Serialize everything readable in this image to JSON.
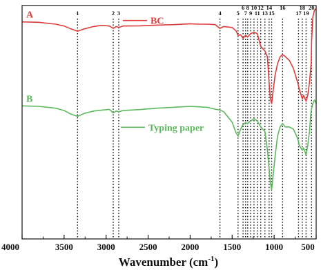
{
  "chart_data": {
    "type": "line",
    "xlabel": "Wavenumber (cm-1)",
    "xlabel_base": "Wavenumber (cm",
    "xlabel_exp": "-1",
    "xlabel_close": ")",
    "xlim": [
      4000,
      500
    ],
    "x_ticks": [
      4000,
      3500,
      3000,
      2500,
      2000,
      1500,
      1000,
      500
    ],
    "x_tick_labels": [
      "4000",
      "3500",
      "3000",
      "2500",
      "2000",
      "1500",
      "1000",
      "500"
    ],
    "grid": false,
    "peak_labels": [
      {
        "label": "1",
        "x": 3340
      },
      {
        "label": "2",
        "x": 2915
      },
      {
        "label": "3",
        "x": 2850
      },
      {
        "label": "4",
        "x": 1645
      },
      {
        "label": "5",
        "x": 1430
      },
      {
        "label": "6",
        "x": 1370
      },
      {
        "label": "7",
        "x": 1340
      },
      {
        "label": "8",
        "x": 1315
      },
      {
        "label": "9",
        "x": 1280
      },
      {
        "label": "10",
        "x": 1240
      },
      {
        "label": "11",
        "x": 1200
      },
      {
        "label": "12",
        "x": 1160
      },
      {
        "label": "13",
        "x": 1110
      },
      {
        "label": "14",
        "x": 1060
      },
      {
        "label": "15",
        "x": 1030
      },
      {
        "label": "16",
        "x": 900
      },
      {
        "label": "17",
        "x": 710
      },
      {
        "label": "18",
        "x": 665
      },
      {
        "label": "19",
        "x": 620
      },
      {
        "label": "20",
        "x": 555
      }
    ],
    "series": [
      {
        "name": "BC",
        "letter": "A",
        "color": "#e03b3b",
        "points": [
          [
            4000,
            0.07
          ],
          [
            3800,
            0.072
          ],
          [
            3600,
            0.08
          ],
          [
            3500,
            0.088
          ],
          [
            3420,
            0.1
          ],
          [
            3340,
            0.11
          ],
          [
            3260,
            0.1
          ],
          [
            3150,
            0.09
          ],
          [
            3050,
            0.085
          ],
          [
            2960,
            0.088
          ],
          [
            2915,
            0.098
          ],
          [
            2880,
            0.09
          ],
          [
            2850,
            0.094
          ],
          [
            2800,
            0.088
          ],
          [
            2600,
            0.087
          ],
          [
            2400,
            0.084
          ],
          [
            2200,
            0.082
          ],
          [
            2000,
            0.078
          ],
          [
            1900,
            0.08
          ],
          [
            1800,
            0.08
          ],
          [
            1700,
            0.082
          ],
          [
            1645,
            0.098
          ],
          [
            1600,
            0.09
          ],
          [
            1500,
            0.094
          ],
          [
            1450,
            0.11
          ],
          [
            1430,
            0.128
          ],
          [
            1400,
            0.125
          ],
          [
            1370,
            0.14
          ],
          [
            1340,
            0.128
          ],
          [
            1315,
            0.135
          ],
          [
            1280,
            0.12
          ],
          [
            1240,
            0.115
          ],
          [
            1200,
            0.12
          ],
          [
            1160,
            0.175
          ],
          [
            1110,
            0.195
          ],
          [
            1080,
            0.22
          ],
          [
            1060,
            0.33
          ],
          [
            1045,
            0.4
          ],
          [
            1030,
            0.42
          ],
          [
            1010,
            0.36
          ],
          [
            990,
            0.3
          ],
          [
            960,
            0.25
          ],
          [
            930,
            0.22
          ],
          [
            900,
            0.21
          ],
          [
            870,
            0.218
          ],
          [
            820,
            0.235
          ],
          [
            770,
            0.27
          ],
          [
            720,
            0.33
          ],
          [
            700,
            0.36
          ],
          [
            665,
            0.4
          ],
          [
            650,
            0.385
          ],
          [
            620,
            0.41
          ],
          [
            600,
            0.385
          ],
          [
            580,
            0.33
          ],
          [
            560,
            0.25
          ],
          [
            555,
            0.16
          ],
          [
            540,
            0.05
          ],
          [
            520,
            0.02
          ],
          [
            510,
            0.015
          ],
          [
            500,
            0.02
          ]
        ]
      },
      {
        "name": "Typing paper",
        "letter": "B",
        "color": "#5cb85c",
        "points": [
          [
            4000,
            0.43
          ],
          [
            3800,
            0.432
          ],
          [
            3600,
            0.44
          ],
          [
            3500,
            0.45
          ],
          [
            3420,
            0.465
          ],
          [
            3340,
            0.475
          ],
          [
            3260,
            0.462
          ],
          [
            3150,
            0.452
          ],
          [
            3050,
            0.448
          ],
          [
            2960,
            0.445
          ],
          [
            2915,
            0.46
          ],
          [
            2880,
            0.452
          ],
          [
            2850,
            0.455
          ],
          [
            2800,
            0.45
          ],
          [
            2600,
            0.446
          ],
          [
            2400,
            0.44
          ],
          [
            2200,
            0.436
          ],
          [
            2000,
            0.432
          ],
          [
            1900,
            0.434
          ],
          [
            1800,
            0.436
          ],
          [
            1700,
            0.444
          ],
          [
            1645,
            0.448
          ],
          [
            1600,
            0.455
          ],
          [
            1500,
            0.5
          ],
          [
            1460,
            0.54
          ],
          [
            1430,
            0.56
          ],
          [
            1400,
            0.53
          ],
          [
            1370,
            0.51
          ],
          [
            1340,
            0.502
          ],
          [
            1315,
            0.505
          ],
          [
            1280,
            0.495
          ],
          [
            1240,
            0.485
          ],
          [
            1200,
            0.495
          ],
          [
            1160,
            0.52
          ],
          [
            1110,
            0.54
          ],
          [
            1080,
            0.62
          ],
          [
            1060,
            0.7
          ],
          [
            1045,
            0.76
          ],
          [
            1030,
            0.79
          ],
          [
            1010,
            0.72
          ],
          [
            990,
            0.65
          ],
          [
            960,
            0.56
          ],
          [
            930,
            0.52
          ],
          [
            900,
            0.505
          ],
          [
            870,
            0.52
          ],
          [
            820,
            0.52
          ],
          [
            770,
            0.53
          ],
          [
            720,
            0.57
          ],
          [
            700,
            0.6
          ],
          [
            665,
            0.62
          ],
          [
            650,
            0.61
          ],
          [
            620,
            0.64
          ],
          [
            600,
            0.6
          ],
          [
            580,
            0.54
          ],
          [
            560,
            0.45
          ],
          [
            540,
            0.42
          ],
          [
            520,
            0.405
          ],
          [
            510,
            0.41
          ],
          [
            500,
            0.42
          ]
        ]
      }
    ]
  }
}
